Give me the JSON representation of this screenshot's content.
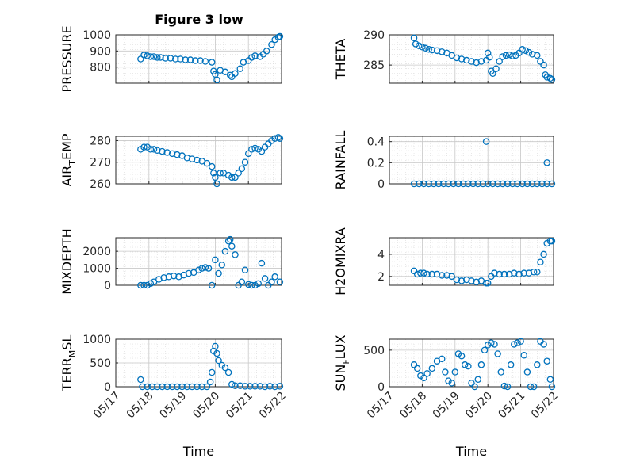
{
  "figure": {
    "title": "Figure 3 low",
    "marker_color": "#0072BD",
    "axis_color": "#262626",
    "grid_color": "#d9d9d9"
  },
  "chart_data": [
    {
      "type": "scatter",
      "ylabel": "PRESSURE",
      "ylim": [
        700,
        1000
      ],
      "yticks": [
        "800",
        "900",
        "1000"
      ],
      "ytick_values": [
        800,
        900,
        1000
      ],
      "xlim": [
        0,
        5
      ],
      "grid": true,
      "x": [
        0.75,
        0.85,
        0.95,
        1.05,
        1.15,
        1.25,
        1.35,
        1.5,
        1.65,
        1.8,
        1.95,
        2.1,
        2.25,
        2.4,
        2.55,
        2.7,
        2.9,
        2.95,
        3.0,
        3.05,
        3.15,
        3.3,
        3.45,
        3.5,
        3.6,
        3.75,
        3.85,
        4.0,
        4.1,
        4.2,
        4.35,
        4.45,
        4.55,
        4.7,
        4.8,
        4.9,
        4.95
      ],
      "y": [
        850,
        875,
        870,
        865,
        865,
        860,
        860,
        855,
        855,
        850,
        850,
        845,
        845,
        840,
        840,
        835,
        830,
        775,
        755,
        720,
        780,
        770,
        750,
        740,
        760,
        790,
        830,
        840,
        860,
        870,
        865,
        880,
        900,
        940,
        970,
        985,
        990
      ],
      "xticklabels": [],
      "xlabel": ""
    },
    {
      "type": "scatter",
      "ylabel": "THETA",
      "ylim": [
        282,
        290
      ],
      "yticks": [
        "285",
        "290"
      ],
      "ytick_values": [
        285,
        290
      ],
      "xlim": [
        0,
        5
      ],
      "grid": true,
      "x": [
        0.75,
        0.8,
        0.9,
        1.0,
        1.1,
        1.2,
        1.3,
        1.45,
        1.6,
        1.75,
        1.9,
        2.05,
        2.2,
        2.35,
        2.5,
        2.65,
        2.8,
        2.95,
        3.0,
        3.05,
        3.1,
        3.15,
        3.25,
        3.35,
        3.45,
        3.55,
        3.65,
        3.75,
        3.85,
        3.95,
        4.05,
        4.15,
        4.25,
        4.35,
        4.5,
        4.6,
        4.7,
        4.75,
        4.8,
        4.9,
        4.95
      ],
      "y": [
        289.5,
        288.5,
        288.2,
        288.0,
        287.8,
        287.6,
        287.5,
        287.4,
        287.2,
        287.0,
        286.6,
        286.2,
        286.0,
        285.8,
        285.6,
        285.4,
        285.6,
        285.8,
        287.0,
        286.3,
        284.0,
        283.6,
        284.4,
        285.6,
        286.4,
        286.6,
        286.7,
        286.5,
        286.6,
        287.0,
        287.6,
        287.4,
        287.1,
        286.8,
        286.6,
        285.6,
        285.0,
        283.4,
        283.0,
        282.8,
        282.6
      ],
      "xticklabels": [],
      "xlabel": ""
    },
    {
      "type": "scatter",
      "ylabel": "AIR_TEMP",
      "ylim": [
        260,
        282
      ],
      "yticks": [
        "260",
        "270",
        "280"
      ],
      "ytick_values": [
        260,
        270,
        280
      ],
      "xlim": [
        0,
        5
      ],
      "grid": true,
      "x": [
        0.75,
        0.85,
        0.95,
        1.05,
        1.15,
        1.25,
        1.4,
        1.55,
        1.7,
        1.85,
        2.0,
        2.15,
        2.3,
        2.45,
        2.6,
        2.75,
        2.9,
        2.95,
        3.0,
        3.05,
        3.15,
        3.25,
        3.4,
        3.5,
        3.6,
        3.7,
        3.8,
        3.9,
        4.0,
        4.1,
        4.2,
        4.3,
        4.4,
        4.5,
        4.6,
        4.7,
        4.8,
        4.9,
        4.95
      ],
      "y": [
        276,
        277,
        277,
        276,
        276,
        275.5,
        275,
        274.5,
        274,
        273.5,
        273,
        272,
        271.5,
        271,
        270.5,
        269.5,
        268,
        265,
        263,
        260,
        265,
        265,
        264,
        263,
        263,
        265,
        267,
        270,
        274,
        276,
        276.5,
        276,
        275,
        277,
        278.5,
        280,
        281,
        281.5,
        281
      ],
      "xticklabels": [],
      "xlabel": ""
    },
    {
      "type": "scatter",
      "ylabel": "RAINFALL",
      "ylim": [
        0,
        0.45
      ],
      "yticks": [
        "0",
        "0.2",
        "0.4"
      ],
      "ytick_values": [
        0,
        0.2,
        0.4
      ],
      "xlim": [
        0,
        5
      ],
      "grid": true,
      "x": [
        0.75,
        0.9,
        1.05,
        1.2,
        1.35,
        1.5,
        1.65,
        1.8,
        1.95,
        2.1,
        2.25,
        2.4,
        2.55,
        2.7,
        2.85,
        3.0,
        3.15,
        3.3,
        3.45,
        3.6,
        3.75,
        3.9,
        4.05,
        4.2,
        4.35,
        4.5,
        4.65,
        4.8,
        4.95,
        2.95,
        4.8
      ],
      "y": [
        0,
        0,
        0,
        0,
        0,
        0,
        0,
        0,
        0,
        0,
        0,
        0,
        0,
        0,
        0,
        0,
        0,
        0,
        0,
        0,
        0,
        0,
        0,
        0,
        0,
        0,
        0,
        0,
        0,
        0.4,
        0.2
      ],
      "xticklabels": [],
      "xlabel": ""
    },
    {
      "type": "scatter",
      "ylabel": "MIXDEPTH",
      "ylim": [
        0,
        2800
      ],
      "yticks": [
        "0",
        "1000",
        "2000"
      ],
      "ytick_values": [
        0,
        1000,
        2000
      ],
      "xlim": [
        0,
        5
      ],
      "grid": true,
      "x": [
        0.75,
        0.85,
        0.95,
        1.05,
        1.15,
        1.3,
        1.45,
        1.6,
        1.75,
        1.9,
        2.05,
        2.2,
        2.35,
        2.5,
        2.6,
        2.7,
        2.8,
        2.9,
        3.0,
        3.1,
        3.2,
        3.3,
        3.4,
        3.45,
        3.5,
        3.6,
        3.7,
        3.8,
        3.9,
        4.0,
        4.1,
        4.2,
        4.3,
        4.4,
        4.5,
        4.6,
        4.7,
        4.8,
        4.95
      ],
      "y": [
        0,
        0,
        0,
        100,
        200,
        350,
        450,
        500,
        550,
        500,
        600,
        700,
        750,
        900,
        1000,
        1050,
        1000,
        0,
        1500,
        700,
        1200,
        2000,
        2600,
        2700,
        2300,
        1800,
        0,
        200,
        900,
        50,
        0,
        0,
        100,
        1300,
        400,
        0,
        200,
        500,
        200
      ],
      "xticklabels": [],
      "xlabel": ""
    },
    {
      "type": "scatter",
      "ylabel": "H2OMIXRA",
      "ylim": [
        1.2,
        5.5
      ],
      "yticks": [
        "2",
        "4"
      ],
      "ytick_values": [
        2,
        4
      ],
      "xlim": [
        0,
        5
      ],
      "grid": true,
      "x": [
        0.75,
        0.85,
        0.95,
        1.05,
        1.15,
        1.3,
        1.45,
        1.6,
        1.75,
        1.9,
        2.05,
        2.2,
        2.35,
        2.5,
        2.65,
        2.8,
        2.95,
        3.0,
        3.1,
        3.2,
        3.35,
        3.5,
        3.65,
        3.8,
        3.95,
        4.1,
        4.25,
        4.4,
        4.5,
        4.6,
        4.7,
        4.8,
        4.9,
        4.95
      ],
      "y": [
        2.5,
        2.2,
        2.3,
        2.3,
        2.2,
        2.2,
        2.2,
        2.1,
        2.1,
        2.0,
        1.7,
        1.6,
        1.7,
        1.6,
        1.5,
        1.6,
        1.4,
        1.4,
        2.0,
        2.3,
        2.2,
        2.2,
        2.2,
        2.3,
        2.2,
        2.3,
        2.3,
        2.4,
        2.4,
        3.3,
        4.0,
        5.0,
        5.2,
        5.2
      ],
      "xticklabels": [],
      "xlabel": ""
    },
    {
      "type": "scatter",
      "ylabel": "TERR_MSL",
      "ylim": [
        0,
        1000
      ],
      "yticks": [
        "0",
        "500",
        "1000"
      ],
      "ytick_values": [
        0,
        500,
        1000
      ],
      "xlim": [
        0,
        5
      ],
      "grid": true,
      "x": [
        0.75,
        0.8,
        0.95,
        1.1,
        1.25,
        1.4,
        1.55,
        1.7,
        1.85,
        2.0,
        2.15,
        2.3,
        2.45,
        2.6,
        2.75,
        2.85,
        2.9,
        2.95,
        3.0,
        3.05,
        3.1,
        3.2,
        3.3,
        3.4,
        3.5,
        3.6,
        3.75,
        3.9,
        4.05,
        4.2,
        4.35,
        4.5,
        4.65,
        4.8,
        4.95
      ],
      "y": [
        150,
        0,
        0,
        0,
        0,
        0,
        0,
        0,
        0,
        0,
        0,
        0,
        0,
        0,
        0,
        100,
        300,
        750,
        850,
        700,
        550,
        450,
        400,
        300,
        50,
        20,
        20,
        10,
        10,
        10,
        10,
        0,
        10,
        0,
        10
      ],
      "xticklabels": [
        "05/17",
        "05/18",
        "05/19",
        "05/20",
        "05/21",
        "05/22"
      ],
      "xlabel": "Time"
    },
    {
      "type": "scatter",
      "ylabel": "SUN_FLUX",
      "ylim": [
        0,
        650
      ],
      "yticks": [
        "0",
        "500"
      ],
      "ytick_values": [
        0,
        500
      ],
      "xlim": [
        0,
        5
      ],
      "grid": true,
      "x": [
        0.75,
        0.85,
        0.95,
        1.05,
        1.15,
        1.3,
        1.45,
        1.6,
        1.7,
        1.8,
        1.9,
        2.0,
        2.1,
        2.2,
        2.3,
        2.4,
        2.5,
        2.6,
        2.7,
        2.8,
        2.9,
        3.0,
        3.1,
        3.2,
        3.3,
        3.4,
        3.5,
        3.6,
        3.7,
        3.8,
        3.9,
        4.0,
        4.1,
        4.2,
        4.3,
        4.4,
        4.5,
        4.6,
        4.7,
        4.8,
        4.9,
        4.95
      ],
      "y": [
        300,
        250,
        150,
        120,
        180,
        250,
        350,
        380,
        200,
        80,
        50,
        200,
        450,
        420,
        300,
        280,
        50,
        0,
        100,
        300,
        500,
        570,
        600,
        580,
        450,
        200,
        10,
        0,
        300,
        580,
        600,
        620,
        430,
        200,
        0,
        0,
        300,
        620,
        580,
        350,
        100,
        0
      ],
      "xticklabels": [
        "05/17",
        "05/18",
        "05/19",
        "05/20",
        "05/21",
        "05/22"
      ],
      "xlabel": "Time"
    }
  ]
}
